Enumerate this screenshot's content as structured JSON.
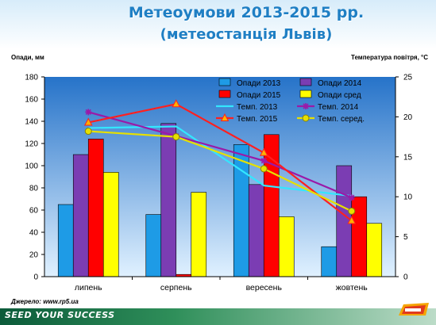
{
  "header": {
    "title_line1": "Метеоумови 2013-2015 рр.",
    "title_line2": "(метеостанція Львів)"
  },
  "footer": {
    "source": "Джерело: www.rp5.ua",
    "slogan": "SEED YOUR SUCCESS"
  },
  "colors": {
    "title": "#1f7fc4",
    "opady_2013": "#1e9be6",
    "opady_2014": "#7b3db3",
    "opady_2015": "#ff0000",
    "opady_sred": "#ffff00",
    "temp_2013": "#33e6ff",
    "temp_2014": "#9a1aa8",
    "temp_2015": "#ff2020",
    "temp_sered": "#e6e000",
    "plot_bg_top": "#2673c9",
    "plot_bg_bottom": "#e0f1ff"
  },
  "chart_data": {
    "type": "bar",
    "ylabel": "Опади, мм",
    "y2label": "Температура повітря, °С",
    "categories": [
      "липень",
      "серпень",
      "вересень",
      "жовтень"
    ],
    "ylim": [
      0,
      180
    ],
    "y2lim": [
      0,
      25
    ],
    "yticks": [
      0,
      20,
      40,
      60,
      80,
      100,
      120,
      140,
      160,
      180
    ],
    "y2ticks": [
      0,
      5,
      10,
      15,
      20,
      25
    ],
    "grid": false,
    "legend_position": "top-right",
    "bar_series": [
      {
        "name": "Опади 2013",
        "values": [
          65,
          56,
          119,
          27
        ],
        "color": "#1e9be6"
      },
      {
        "name": "Опади 2014",
        "values": [
          110,
          138,
          83,
          100
        ],
        "color": "#7b3db3"
      },
      {
        "name": "Опади 2015",
        "values": [
          124,
          2,
          128,
          72
        ],
        "color": "#ff0000"
      },
      {
        "name": "Опади сред",
        "values": [
          94,
          76,
          54,
          48
        ],
        "color": "#ffff00"
      }
    ],
    "line_series": [
      {
        "name": "Темп. 2013",
        "values": [
          18.6,
          18.8,
          11.4,
          10.1
        ],
        "color": "#33e6ff",
        "marker": "none"
      },
      {
        "name": "Темп. 2014",
        "values": [
          20.6,
          17.6,
          14.5,
          9.9
        ],
        "color": "#9a1aa8",
        "marker": "star"
      },
      {
        "name": "Темп. 2015",
        "values": [
          19.3,
          21.6,
          15.5,
          7.0
        ],
        "color": "#ff2020",
        "marker": "triangle"
      },
      {
        "name": "Темп. серед.",
        "values": [
          18.2,
          17.5,
          13.5,
          8.2
        ],
        "color": "#e6e000",
        "marker": "circle"
      }
    ]
  }
}
